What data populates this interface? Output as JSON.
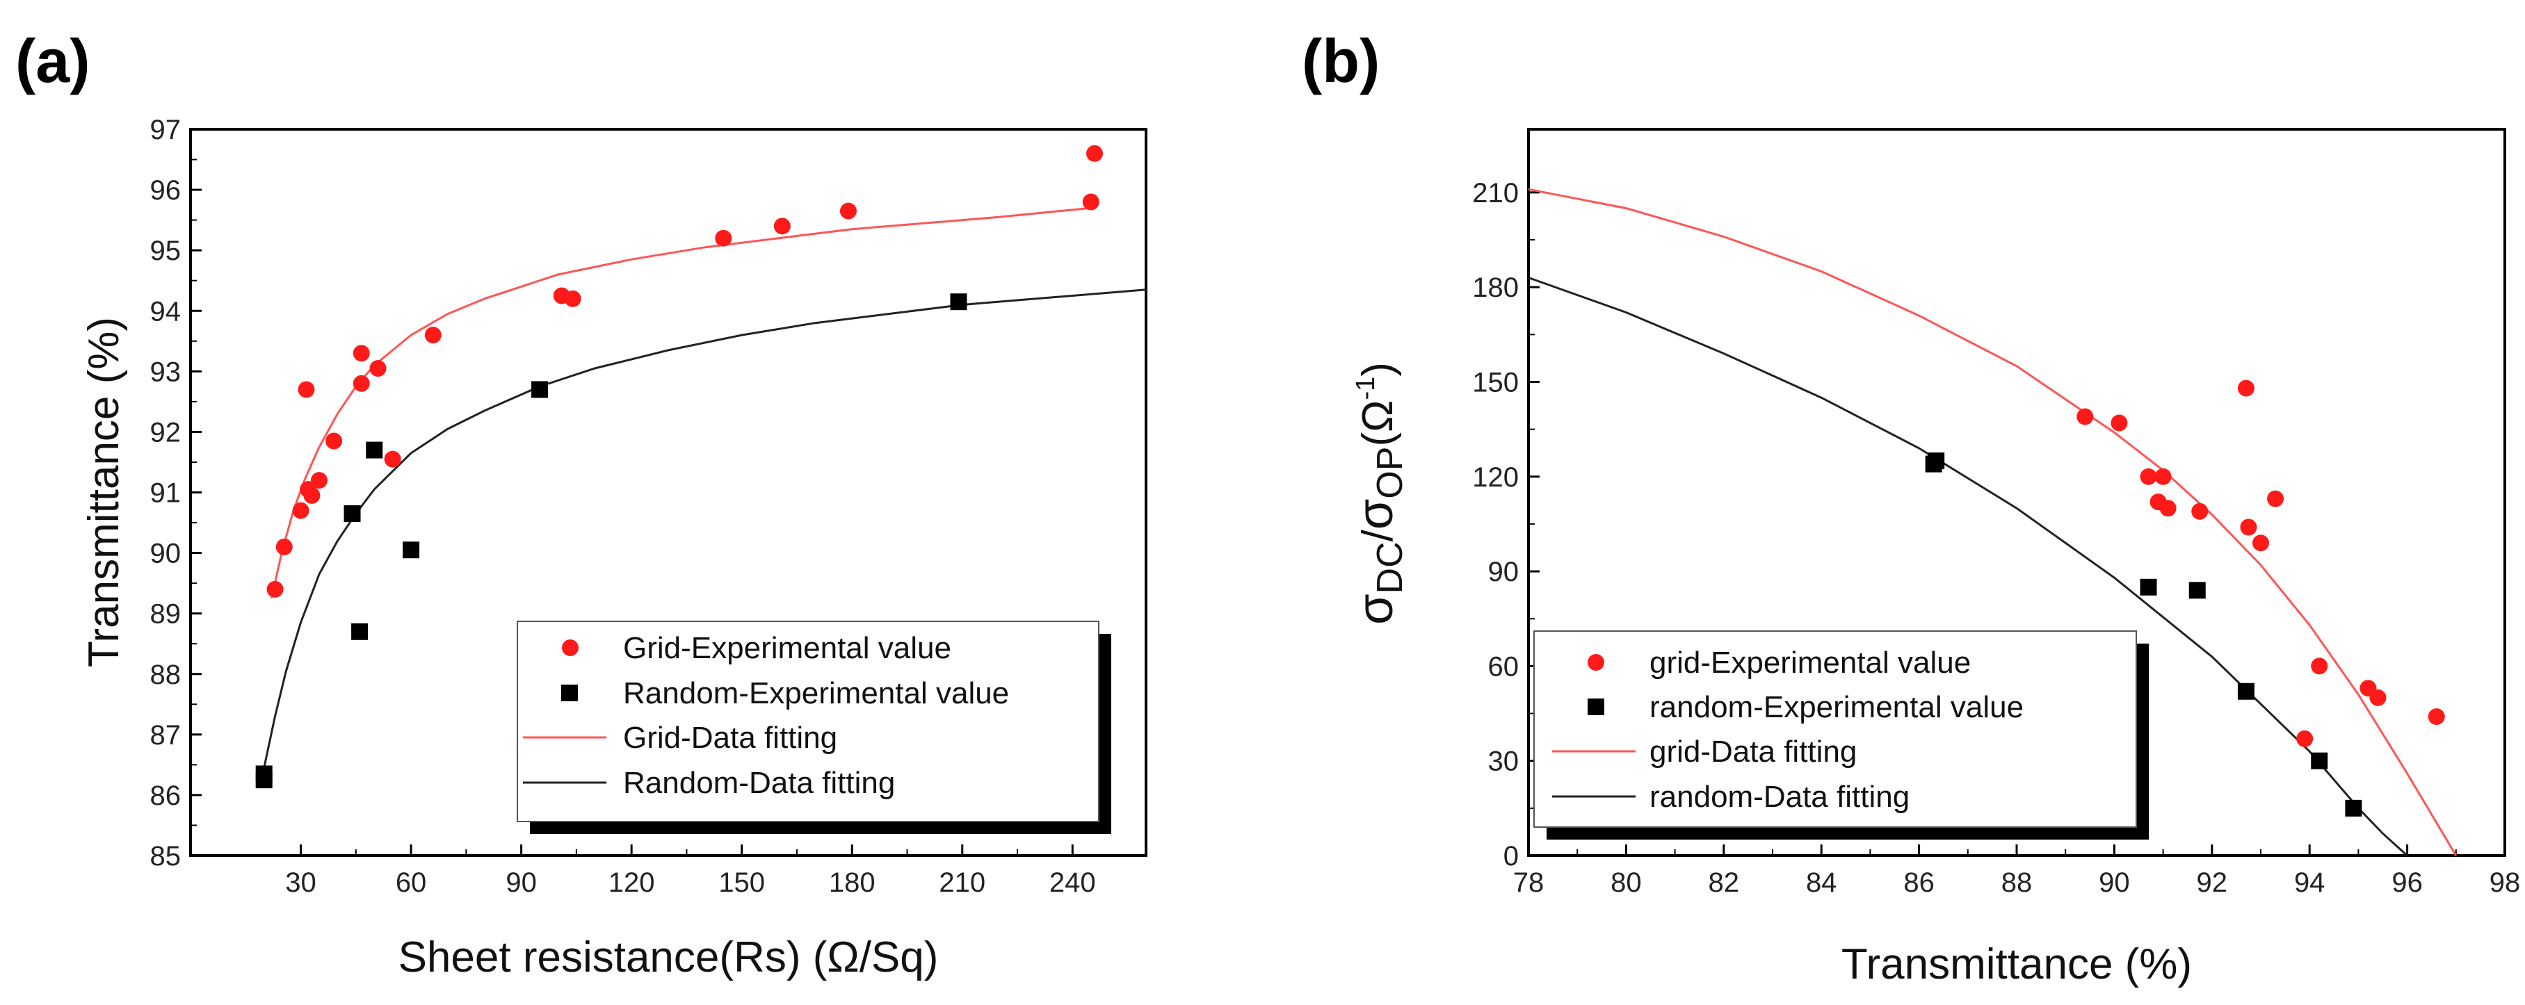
{
  "colors": {
    "grid": "#ff1a1a",
    "random": "#000000",
    "grid_line": "#ff5555",
    "random_line": "#222222"
  },
  "chart_data": [
    {
      "panel_label": "(a)",
      "type": "scatter",
      "xlabel": "Sheet resistance(Rs) (Ω/Sq)",
      "ylabel": "Transmittance (%)",
      "xlim": [
        0,
        260
      ],
      "ylim": [
        85,
        97
      ],
      "xticks": [
        30,
        60,
        90,
        120,
        150,
        180,
        210,
        240
      ],
      "yticks": [
        85,
        86,
        87,
        88,
        89,
        90,
        91,
        92,
        93,
        94,
        95,
        96,
        97
      ],
      "legend_position": "bottom-right",
      "series": [
        {
          "name": "Grid-Experimental value",
          "kind": "points",
          "marker": "circle",
          "color": "#ff1a1a",
          "x": [
            23,
            25.5,
            30,
            32,
            31.5,
            33,
            35,
            39,
            46.5,
            46.5,
            51,
            55,
            66,
            101,
            104,
            145,
            161,
            179,
            245,
            246
          ],
          "y": [
            89.4,
            90.1,
            90.7,
            91.05,
            92.7,
            90.95,
            91.2,
            91.85,
            93.3,
            92.8,
            93.05,
            91.55,
            93.6,
            94.25,
            94.2,
            95.2,
            95.4,
            95.65,
            95.8,
            96.6
          ]
        },
        {
          "name": "Random-Experimental value",
          "kind": "points",
          "marker": "square",
          "color": "#000000",
          "x": [
            20,
            20,
            44,
            46,
            50,
            60,
            95,
            209
          ],
          "y": [
            86.35,
            86.25,
            90.65,
            88.7,
            91.7,
            90.05,
            92.7,
            94.15
          ]
        },
        {
          "name": "Grid-Data fitting",
          "kind": "line",
          "color": "#ff5555",
          "x": [
            22,
            25,
            28,
            31,
            35,
            40,
            45,
            50,
            60,
            70,
            80,
            100,
            120,
            140,
            160,
            180,
            200,
            220,
            245
          ],
          "y": [
            89.25,
            90.05,
            90.7,
            91.2,
            91.75,
            92.3,
            92.75,
            93.1,
            93.6,
            93.95,
            94.2,
            94.6,
            94.85,
            95.05,
            95.2,
            95.35,
            95.45,
            95.55,
            95.7
          ]
        },
        {
          "name": "Random-Data fitting",
          "kind": "line",
          "color": "#222222",
          "x": [
            20,
            23,
            26,
            30,
            35,
            40,
            45,
            50,
            60,
            70,
            80,
            95,
            110,
            130,
            150,
            170,
            190,
            210,
            230,
            260
          ],
          "y": [
            86.45,
            87.3,
            88.05,
            88.85,
            89.65,
            90.2,
            90.65,
            91.05,
            91.65,
            92.05,
            92.35,
            92.75,
            93.05,
            93.35,
            93.6,
            93.8,
            93.95,
            94.1,
            94.2,
            94.35
          ]
        }
      ]
    },
    {
      "panel_label": "(b)",
      "type": "scatter",
      "xlabel": "Transmittance (%)",
      "ylabel_parts": {
        "sigma1": "σ",
        "sub1": "DC",
        "slash": "/",
        "sigma2": "σ",
        "sub2": "OP",
        "unit_open": "(Ω",
        "unit_sup": "-1",
        "unit_close": ")"
      },
      "xlim": [
        78,
        98
      ],
      "ylim": [
        0,
        230
      ],
      "xticks": [
        78,
        80,
        82,
        84,
        86,
        88,
        90,
        92,
        94,
        96,
        98
      ],
      "yticks": [
        0,
        30,
        60,
        90,
        120,
        150,
        180,
        210
      ],
      "legend_position": "bottom-left",
      "series": [
        {
          "name": "grid-Experimental value",
          "kind": "points",
          "marker": "circle",
          "color": "#ff1a1a",
          "x": [
            89.4,
            90.1,
            90.7,
            90.9,
            91.0,
            91.1,
            91.75,
            92.7,
            92.75,
            93.0,
            93.3,
            93.9,
            94.2,
            95.2,
            95.4,
            96.6
          ],
          "y": [
            139,
            137,
            120,
            112,
            120,
            110,
            109,
            148,
            104,
            99,
            113,
            37,
            60,
            53,
            50,
            44
          ]
        },
        {
          "name": "random-Experimental value",
          "kind": "points",
          "marker": "square",
          "color": "#000000",
          "x": [
            86.3,
            86.35,
            90.7,
            91.7,
            92.7,
            94.2,
            94.9
          ],
          "y": [
            124,
            125,
            85,
            84,
            52,
            30,
            15
          ]
        },
        {
          "name": "grid-Data fitting",
          "kind": "line",
          "color": "#ff5555",
          "x": [
            78,
            80,
            82,
            84,
            86,
            88,
            90,
            91,
            92,
            93,
            94,
            95,
            96,
            96.5,
            97
          ],
          "y": [
            211,
            205,
            196,
            185,
            171,
            155,
            134,
            122,
            108,
            92,
            73,
            51,
            26,
            13,
            0
          ]
        },
        {
          "name": "random-Data fitting",
          "kind": "line",
          "color": "#222222",
          "x": [
            78,
            80,
            82,
            84,
            86,
            88,
            90,
            92,
            93,
            94,
            95,
            95.5,
            96
          ],
          "y": [
            183,
            172,
            159,
            145,
            129,
            110,
            88,
            63,
            48,
            33,
            15,
            7,
            0
          ]
        }
      ]
    }
  ]
}
